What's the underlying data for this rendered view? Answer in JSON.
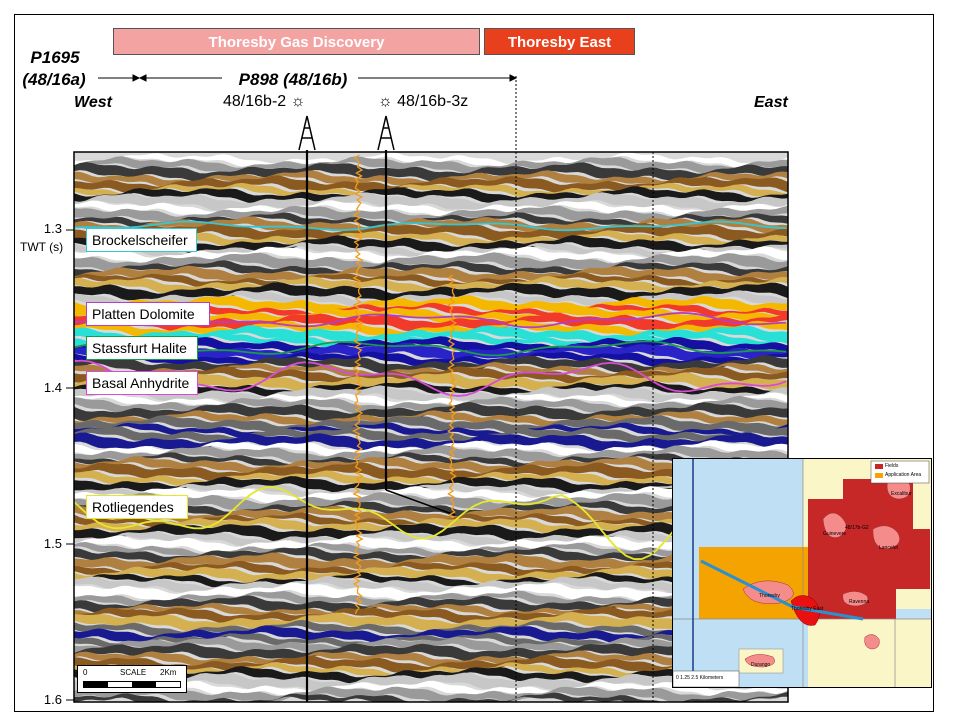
{
  "banners": {
    "discovery": "Thoresby Gas Discovery",
    "east": "Thoresby East",
    "discovery_color": "#f4a3a3",
    "east_color": "#e8401c"
  },
  "licences": {
    "p1695": "P1695",
    "p1695_block": "(48/16a)",
    "p898": "P898 (48/16b)"
  },
  "directions": {
    "west": "West",
    "east": "East"
  },
  "wells": [
    {
      "name": "48/16b-2",
      "icon": "gas-show-icon"
    },
    {
      "name": "48/16b-3z",
      "icon": "gas-show-icon"
    }
  ],
  "axis": {
    "title": "TWT (s)",
    "ticks": [
      "1.3",
      "1.4",
      "1.5",
      "1.6"
    ]
  },
  "horizons": [
    {
      "name": "Brockelscheifer",
      "color": "#35c6d6"
    },
    {
      "name": "Platten Dolomite",
      "color": "#b13fc8"
    },
    {
      "name": "Stassfurt Halite",
      "color": "#1a9a4a"
    },
    {
      "name": "Basal Anhydrite",
      "color": "#d84ad8"
    },
    {
      "name": "Rotliegendes",
      "color": "#e6e62a"
    }
  ],
  "scale_bar": {
    "left": "0",
    "mid": "SCALE",
    "right": "2Km"
  },
  "inset_map": {
    "labels": [
      "Thoresby",
      "Thoresby East",
      "Ravenna",
      "Excalibur",
      "Lancelot",
      "Guinevere",
      "Durango",
      "48/17b-G2"
    ],
    "legend": [
      "Fields",
      "Application Area"
    ],
    "scale": "0  1.25  2.5   Kilometers"
  }
}
